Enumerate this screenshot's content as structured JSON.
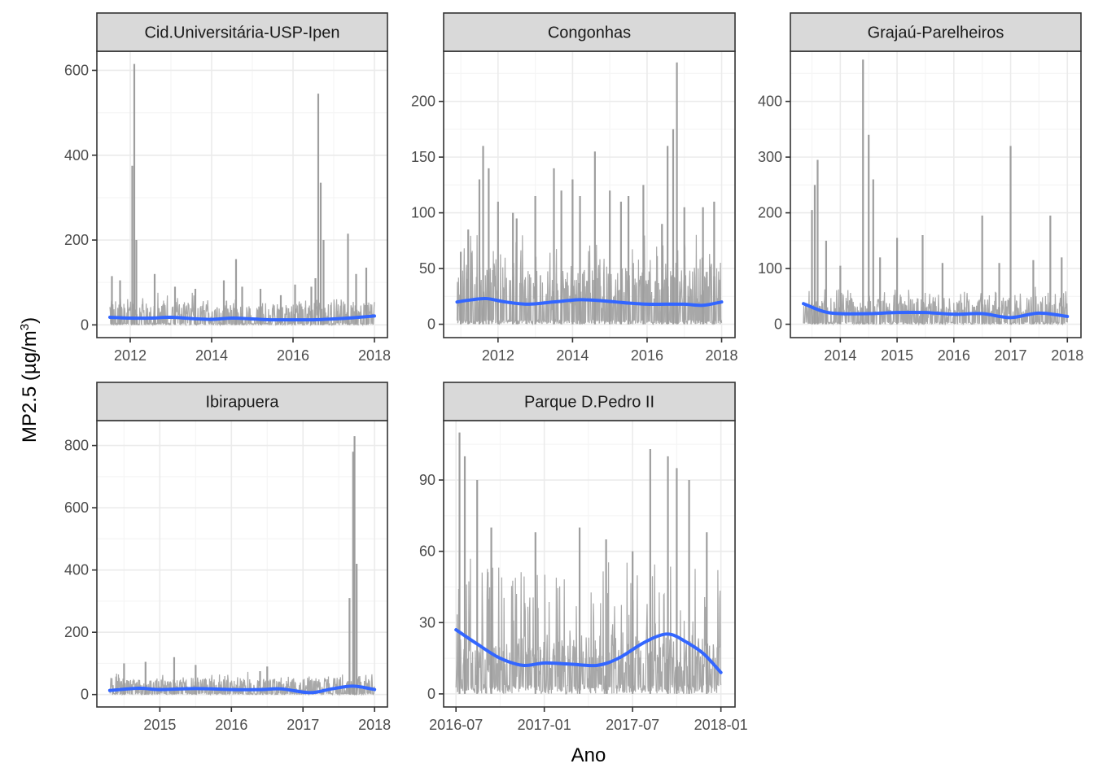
{
  "chart_data": {
    "type": "line",
    "xlabel": "Ano",
    "ylabel": "MP2.5 (µg/m",
    "ylabel_sup": "3",
    "ylabel_close": ")",
    "colors": {
      "raw": "#9e9e9e",
      "smooth": "#3366ff",
      "strip_fill": "#d9d9d9",
      "border": "#333333",
      "grid_major": "#ebebeb",
      "grid_minor": "#f5f5f5"
    },
    "panels": [
      {
        "title": "Cid.Universitária-USP-Ipen",
        "x_range": [
          2011.5,
          2018.0
        ],
        "xlim": [
          2011.18,
          2018.32
        ],
        "ylim": [
          -30,
          645
        ],
        "x_ticks": [
          2012,
          2014,
          2016,
          2018
        ],
        "x_tick_labels": [
          "2012",
          "2014",
          "2016",
          "2018"
        ],
        "y_ticks": [
          0,
          200,
          400,
          600
        ],
        "y_tick_labels": [
          "0",
          "200",
          "400",
          "600"
        ],
        "baseline": 30,
        "noise_hi": 60,
        "spikes": [
          [
            2011.55,
            115
          ],
          [
            2011.75,
            105
          ],
          [
            2012.05,
            375
          ],
          [
            2012.1,
            615
          ],
          [
            2012.15,
            200
          ],
          [
            2012.6,
            120
          ],
          [
            2013.1,
            90
          ],
          [
            2013.6,
            85
          ],
          [
            2014.3,
            105
          ],
          [
            2014.6,
            155
          ],
          [
            2014.75,
            90
          ],
          [
            2015.2,
            85
          ],
          [
            2015.7,
            70
          ],
          [
            2016.05,
            95
          ],
          [
            2016.45,
            90
          ],
          [
            2016.55,
            110
          ],
          [
            2016.62,
            545
          ],
          [
            2016.68,
            335
          ],
          [
            2016.75,
            200
          ],
          [
            2017.35,
            215
          ],
          [
            2017.55,
            120
          ],
          [
            2017.8,
            135
          ]
        ],
        "smooth": [
          [
            2011.5,
            18
          ],
          [
            2012.0,
            16
          ],
          [
            2012.5,
            16
          ],
          [
            2013.0,
            18
          ],
          [
            2013.5,
            15
          ],
          [
            2014.0,
            13
          ],
          [
            2014.5,
            16
          ],
          [
            2015.0,
            14
          ],
          [
            2015.5,
            12
          ],
          [
            2016.0,
            12
          ],
          [
            2016.5,
            12
          ],
          [
            2017.0,
            14
          ],
          [
            2017.5,
            17
          ],
          [
            2018.0,
            21
          ]
        ]
      },
      {
        "title": "Congonhas",
        "x_range": [
          2010.9,
          2018.0
        ],
        "xlim": [
          2010.54,
          2018.36
        ],
        "ylim": [
          -12,
          245
        ],
        "x_ticks": [
          2012,
          2014,
          2016,
          2018
        ],
        "x_tick_labels": [
          "2012",
          "2014",
          "2016",
          "2018"
        ],
        "y_ticks": [
          0,
          50,
          100,
          150,
          200
        ],
        "y_tick_labels": [
          "0",
          "50",
          "100",
          "150",
          "200"
        ],
        "baseline": 25,
        "noise_hi": 70,
        "spikes": [
          [
            2011.0,
            65
          ],
          [
            2011.2,
            85
          ],
          [
            2011.5,
            130
          ],
          [
            2011.6,
            160
          ],
          [
            2011.75,
            140
          ],
          [
            2012.0,
            110
          ],
          [
            2012.4,
            100
          ],
          [
            2012.5,
            95
          ],
          [
            2013.0,
            115
          ],
          [
            2013.5,
            140
          ],
          [
            2013.7,
            120
          ],
          [
            2014.0,
            130
          ],
          [
            2014.2,
            115
          ],
          [
            2014.6,
            155
          ],
          [
            2015.0,
            120
          ],
          [
            2015.3,
            110
          ],
          [
            2015.5,
            115
          ],
          [
            2015.9,
            125
          ],
          [
            2016.4,
            90
          ],
          [
            2016.55,
            160
          ],
          [
            2016.7,
            175
          ],
          [
            2016.8,
            235
          ],
          [
            2017.0,
            105
          ],
          [
            2017.5,
            105
          ],
          [
            2017.8,
            110
          ]
        ],
        "smooth": [
          [
            2010.9,
            20
          ],
          [
            2011.3,
            22
          ],
          [
            2011.7,
            23
          ],
          [
            2012.2,
            20
          ],
          [
            2012.8,
            18
          ],
          [
            2013.5,
            20
          ],
          [
            2014.2,
            22
          ],
          [
            2014.8,
            21
          ],
          [
            2015.5,
            19
          ],
          [
            2016.0,
            18
          ],
          [
            2016.5,
            18
          ],
          [
            2017.0,
            18
          ],
          [
            2017.5,
            17
          ],
          [
            2018.0,
            20
          ]
        ]
      },
      {
        "title": "Grajaú-Parelheiros",
        "x_range": [
          2013.35,
          2018.0
        ],
        "xlim": [
          2013.12,
          2018.24
        ],
        "ylim": [
          -24,
          490
        ],
        "x_ticks": [
          2014,
          2015,
          2016,
          2017,
          2018
        ],
        "x_tick_labels": [
          "2014",
          "2015",
          "2016",
          "2017",
          "2018"
        ],
        "y_ticks": [
          0,
          100,
          200,
          300,
          400
        ],
        "y_tick_labels": [
          "0",
          "100",
          "200",
          "300",
          "400"
        ],
        "baseline": 25,
        "noise_hi": 55,
        "spikes": [
          [
            2013.5,
            205
          ],
          [
            2013.55,
            250
          ],
          [
            2013.6,
            295
          ],
          [
            2013.75,
            150
          ],
          [
            2014.0,
            105
          ],
          [
            2014.4,
            475
          ],
          [
            2014.5,
            340
          ],
          [
            2014.58,
            260
          ],
          [
            2014.7,
            120
          ],
          [
            2015.0,
            155
          ],
          [
            2015.45,
            160
          ],
          [
            2015.8,
            110
          ],
          [
            2016.5,
            195
          ],
          [
            2016.8,
            110
          ],
          [
            2017.0,
            320
          ],
          [
            2017.4,
            115
          ],
          [
            2017.7,
            195
          ],
          [
            2017.9,
            120
          ]
        ],
        "smooth": [
          [
            2013.35,
            37
          ],
          [
            2013.7,
            23
          ],
          [
            2014.0,
            19
          ],
          [
            2014.5,
            19
          ],
          [
            2015.0,
            21
          ],
          [
            2015.5,
            21
          ],
          [
            2016.0,
            18
          ],
          [
            2016.5,
            19
          ],
          [
            2017.0,
            12
          ],
          [
            2017.5,
            20
          ],
          [
            2018.0,
            14
          ]
        ]
      },
      {
        "title": "Ibirapuera",
        "x_range": [
          2014.3,
          2018.0
        ],
        "xlim": [
          2014.12,
          2018.18
        ],
        "ylim": [
          -40,
          880
        ],
        "x_ticks": [
          2015,
          2016,
          2017,
          2018
        ],
        "x_tick_labels": [
          "2015",
          "2016",
          "2017",
          "2018"
        ],
        "y_ticks": [
          0,
          200,
          400,
          600,
          800
        ],
        "y_tick_labels": [
          "0",
          "200",
          "400",
          "600",
          "800"
        ],
        "baseline": 30,
        "noise_hi": 55,
        "spikes": [
          [
            2014.5,
            100
          ],
          [
            2014.8,
            105
          ],
          [
            2015.2,
            120
          ],
          [
            2015.5,
            95
          ],
          [
            2016.4,
            75
          ],
          [
            2016.5,
            90
          ],
          [
            2017.65,
            310
          ],
          [
            2017.7,
            780
          ],
          [
            2017.72,
            830
          ],
          [
            2017.75,
            420
          ]
        ],
        "smooth": [
          [
            2014.3,
            13
          ],
          [
            2014.7,
            20
          ],
          [
            2015.0,
            16
          ],
          [
            2015.5,
            19
          ],
          [
            2016.0,
            16
          ],
          [
            2016.4,
            16
          ],
          [
            2016.7,
            18
          ],
          [
            2017.1,
            6
          ],
          [
            2017.4,
            18
          ],
          [
            2017.7,
            27
          ],
          [
            2018.0,
            16
          ]
        ]
      },
      {
        "title": "Parque D.Pedro II",
        "x_range": [
          2016.5,
          2018.0
        ],
        "xlim": [
          2016.43,
          2018.08
        ],
        "ylim": [
          -5.5,
          115
        ],
        "x_ticks": [
          2016.5,
          2017.0,
          2017.5,
          2018.0
        ],
        "x_tick_labels": [
          "2016-07",
          "2017-01",
          "2017-07",
          "2018-01"
        ],
        "y_ticks": [
          0,
          30,
          60,
          90
        ],
        "y_tick_labels": [
          "0",
          "30",
          "60",
          "90"
        ],
        "baseline": 8,
        "noise_hi": 55,
        "spikes": [
          [
            2016.52,
            110
          ],
          [
            2016.55,
            100
          ],
          [
            2016.62,
            90
          ],
          [
            2016.7,
            70
          ],
          [
            2016.95,
            68
          ],
          [
            2017.2,
            70
          ],
          [
            2017.35,
            65
          ],
          [
            2017.5,
            60
          ],
          [
            2017.6,
            103
          ],
          [
            2017.7,
            100
          ],
          [
            2017.75,
            95
          ],
          [
            2017.82,
            90
          ],
          [
            2017.92,
            68
          ]
        ],
        "smooth": [
          [
            2016.5,
            27
          ],
          [
            2016.62,
            21
          ],
          [
            2016.75,
            15
          ],
          [
            2016.88,
            12
          ],
          [
            2017.0,
            13
          ],
          [
            2017.15,
            12.5
          ],
          [
            2017.3,
            12
          ],
          [
            2017.42,
            15
          ],
          [
            2017.55,
            21
          ],
          [
            2017.65,
            24.5
          ],
          [
            2017.72,
            25
          ],
          [
            2017.8,
            22
          ],
          [
            2017.9,
            17
          ],
          [
            2018.0,
            9
          ]
        ]
      }
    ]
  }
}
